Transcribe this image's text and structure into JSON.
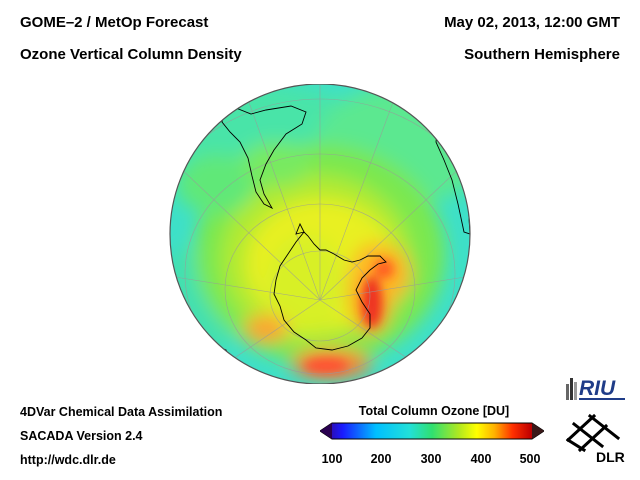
{
  "header": {
    "title_line1": "GOME–2 / MetOp Forecast",
    "title_line2": "Ozone Vertical Column Density",
    "datetime": "May 02, 2013, 12:00 GMT",
    "region": "Southern Hemisphere"
  },
  "footer": {
    "line1": "4DVar Chemical Data Assimilation",
    "line2": "SACADA Version 2.4",
    "url": "http://wdc.dlr.de"
  },
  "colorbar": {
    "title": "Total Column Ozone [DU]",
    "ticks": [
      "100",
      "200",
      "300",
      "400",
      "500"
    ],
    "min": 100,
    "max": 500,
    "colors": [
      "#3a0070",
      "#1a1aff",
      "#00bfff",
      "#22e0d8",
      "#30e070",
      "#b0e820",
      "#ffff00",
      "#ffb000",
      "#ff3000",
      "#c00000",
      "#5a2020"
    ]
  },
  "logos": {
    "riu": "RIU",
    "dlr": "DLR"
  },
  "map": {
    "projection": "south-polar-orthographic",
    "background_ozone_du": 300,
    "field_colors": {
      "low": "#3ee0c8",
      "mid": "#6be850",
      "high": "#ffff30",
      "veryhigh": "#ff9020",
      "max": "#ee3020"
    }
  }
}
